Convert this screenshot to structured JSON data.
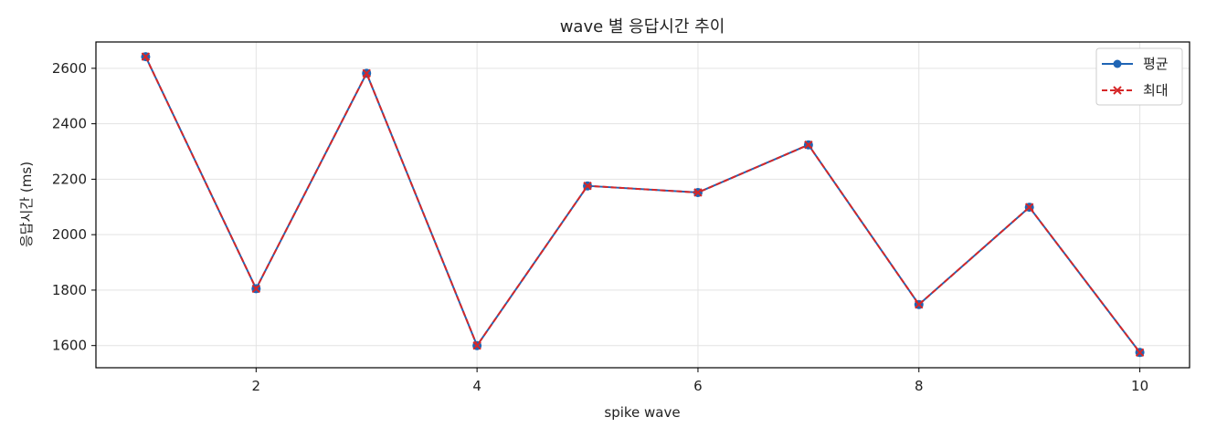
{
  "chart_data": {
    "type": "line",
    "title": "wave 별 응답시간 추이",
    "xlabel": "spike wave",
    "ylabel": "응답시간 (ms)",
    "x": [
      1,
      2,
      3,
      4,
      5,
      6,
      7,
      8,
      9,
      10
    ],
    "xlim": [
      0.55,
      10.45
    ],
    "ylim": [
      1520,
      2695
    ],
    "xticks": [
      2,
      4,
      6,
      8,
      10
    ],
    "yticks": [
      1600,
      1800,
      2000,
      2200,
      2400,
      2600
    ],
    "grid": true,
    "legend_position": "top-right",
    "series": [
      {
        "name": "평균",
        "values": [
          2642,
          1805,
          2582,
          1600,
          2176,
          2152,
          2324,
          1748,
          2099,
          1575
        ],
        "color": "#1f65b5",
        "marker": "circle",
        "linestyle": "solid"
      },
      {
        "name": "최대",
        "values": [
          2642,
          1805,
          2582,
          1600,
          2176,
          2152,
          2324,
          1748,
          2099,
          1575
        ],
        "color": "#d62728",
        "marker": "x",
        "linestyle": "dashed"
      }
    ]
  }
}
